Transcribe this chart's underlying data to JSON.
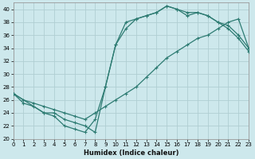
{
  "xlabel": "Humidex (Indice chaleur)",
  "bg_color": "#cde8ec",
  "grid_color": "#b0ced2",
  "line_color": "#2d7b72",
  "xlim": [
    0,
    23
  ],
  "ylim": [
    20,
    41
  ],
  "xticks": [
    0,
    1,
    2,
    3,
    4,
    5,
    6,
    7,
    8,
    9,
    10,
    11,
    12,
    13,
    14,
    15,
    16,
    17,
    18,
    19,
    20,
    21,
    22,
    23
  ],
  "yticks": [
    20,
    22,
    24,
    26,
    28,
    30,
    32,
    34,
    36,
    38,
    40
  ],
  "curve1_x": [
    0,
    1,
    2,
    3,
    4,
    5,
    6,
    7,
    8,
    9,
    10,
    11,
    12,
    13,
    14,
    15,
    16,
    17,
    18,
    19,
    20,
    21,
    22,
    23
  ],
  "curve1_y": [
    27,
    25.5,
    25,
    24,
    23.5,
    22,
    21.5,
    21,
    23,
    28,
    34.5,
    37,
    38.5,
    39,
    39.5,
    40.5,
    40,
    39.5,
    39.5,
    39,
    38,
    37.5,
    36,
    34
  ],
  "curve2_x": [
    0,
    1,
    2,
    3,
    4,
    5,
    6,
    7,
    8,
    9,
    10,
    11,
    12,
    13,
    14,
    15,
    16,
    17,
    18,
    19,
    20,
    21,
    22,
    23
  ],
  "curve2_y": [
    27,
    26,
    25.5,
    25,
    24.5,
    24,
    23.5,
    23,
    24,
    25,
    26,
    27,
    28,
    29.5,
    31,
    32.5,
    33.5,
    34.5,
    35.5,
    36,
    37,
    38,
    38.5,
    34
  ],
  "curve3_x": [
    0,
    3,
    4,
    5,
    6,
    7,
    8,
    9,
    10,
    11,
    12,
    13,
    14,
    15,
    16,
    17,
    18,
    19,
    20,
    21,
    22,
    23
  ],
  "curve3_y": [
    27,
    24,
    24,
    23,
    22.5,
    22,
    21,
    28,
    34.5,
    38,
    38.5,
    39,
    39.5,
    40.5,
    40,
    39,
    39.5,
    39,
    38,
    37,
    35.5,
    33.5
  ]
}
